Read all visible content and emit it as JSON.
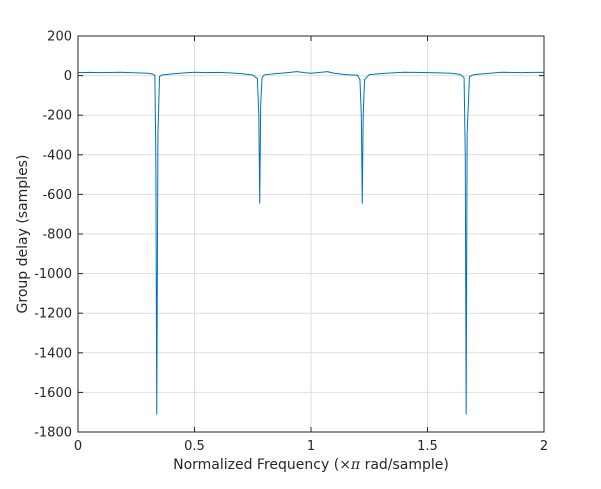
{
  "chart_data": {
    "type": "line",
    "title": "",
    "xlabel_prefix": "Normalized Frequency (",
    "xlabel_symbol": "×π",
    "xlabel_suffix": " rad/sample)",
    "ylabel": "Group delay (samples)",
    "xlim": [
      0,
      2
    ],
    "ylim": [
      -1800,
      200
    ],
    "xticks": [
      0,
      0.5,
      1,
      1.5,
      2
    ],
    "xtick_labels": [
      "0",
      "0.5",
      "1",
      "1.5",
      "2"
    ],
    "yticks": [
      -1800,
      -1600,
      -1400,
      -1200,
      -1000,
      -800,
      -600,
      -400,
      -200,
      0,
      200
    ],
    "ytick_labels": [
      "-1800",
      "-1600",
      "-1400",
      "-1200",
      "-1000",
      "-800",
      "-600",
      "-400",
      "-200",
      "0",
      "200"
    ],
    "grid": true,
    "line_color": "#0072bd",
    "series": [
      {
        "x": [
          0,
          0.05,
          0.1,
          0.18,
          0.25,
          0.3,
          0.32,
          0.33,
          0.334,
          0.338,
          0.343,
          0.35,
          0.36,
          0.4,
          0.45,
          0.5,
          0.55,
          0.6,
          0.65,
          0.7,
          0.75,
          0.77,
          0.776,
          0.78,
          0.784,
          0.79,
          0.8,
          0.85,
          0.9,
          0.94,
          0.98,
          1.0,
          1.03,
          1.07,
          1.1,
          1.15,
          1.2,
          1.21,
          1.216,
          1.22,
          1.224,
          1.23,
          1.25,
          1.3,
          1.35,
          1.4,
          1.45,
          1.5,
          1.55,
          1.6,
          1.64,
          1.657,
          1.662,
          1.666,
          1.67,
          1.68,
          1.7,
          1.75,
          1.82,
          1.9,
          1.95,
          2.0
        ],
        "y": [
          15,
          16,
          15,
          17,
          14,
          12,
          8,
          0,
          -400,
          -1710,
          -300,
          -5,
          3,
          8,
          13,
          17,
          15,
          16,
          14,
          10,
          3,
          -15,
          -200,
          -645,
          -150,
          -10,
          4,
          10,
          15,
          20,
          14,
          12,
          15,
          20,
          12,
          5,
          2,
          -20,
          -200,
          -645,
          -200,
          -20,
          5,
          10,
          14,
          17,
          16,
          15,
          14,
          12,
          6,
          -10,
          -400,
          -1710,
          -300,
          -5,
          5,
          10,
          17,
          15,
          16,
          16
        ]
      }
    ]
  }
}
